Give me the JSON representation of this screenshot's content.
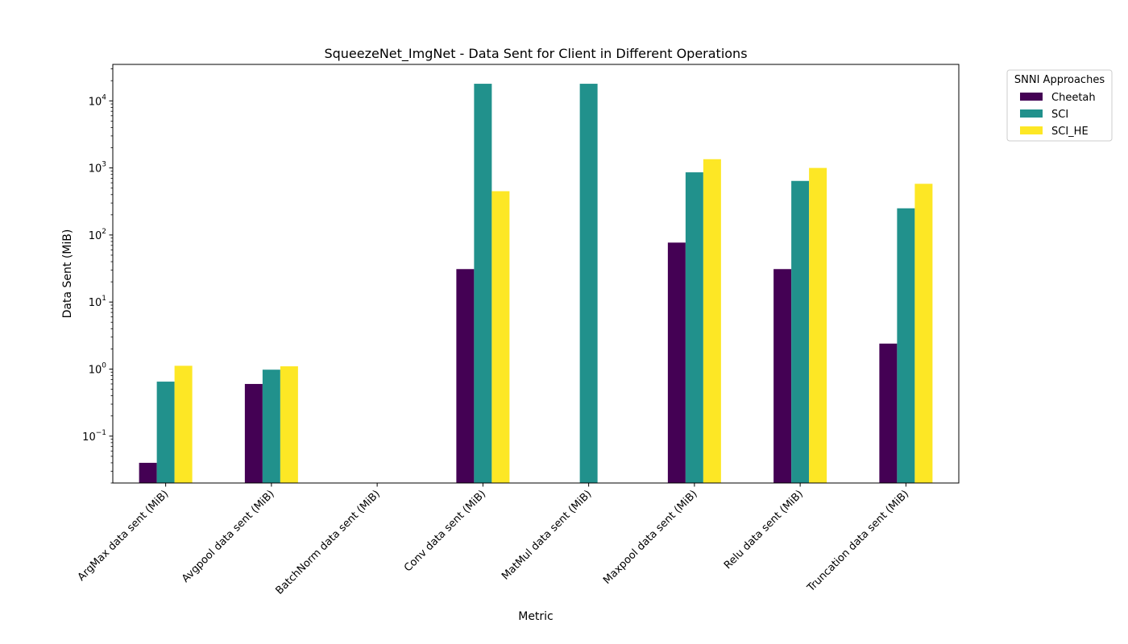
{
  "chart_data": {
    "type": "bar",
    "title": "SqueezeNet_ImgNet - Data Sent for Client in Different Operations",
    "xlabel": "Metric",
    "ylabel": "Data Sent (MiB)",
    "yscale": "log",
    "ylim": [
      0.02,
      35000
    ],
    "yticks": [
      {
        "value": 0.1,
        "base": "10",
        "exp": "−1"
      },
      {
        "value": 1,
        "base": "10",
        "exp": "0"
      },
      {
        "value": 10,
        "base": "10",
        "exp": "1"
      },
      {
        "value": 100,
        "base": "10",
        "exp": "2"
      },
      {
        "value": 1000,
        "base": "10",
        "exp": "3"
      },
      {
        "value": 10000,
        "base": "10",
        "exp": "4"
      }
    ],
    "categories": [
      "ArgMax data sent (MiB)",
      "Avgpool data sent (MiB)",
      "BatchNorm data sent (MiB)",
      "Conv data sent (MiB)",
      "MatMul data sent (MiB)",
      "Maxpool data sent (MiB)",
      "Relu data sent (MiB)",
      "Truncation data sent (MiB)"
    ],
    "series": [
      {
        "name": "Cheetah",
        "color": "#440154",
        "values": [
          0.04,
          0.6,
          null,
          31,
          null,
          77,
          31,
          2.4
        ]
      },
      {
        "name": "SCI",
        "color": "#21918c",
        "values": [
          0.65,
          0.98,
          null,
          18000,
          18000,
          860,
          640,
          250
        ]
      },
      {
        "name": "SCI_HE",
        "color": "#fde725",
        "values": [
          1.12,
          1.1,
          null,
          450,
          null,
          1350,
          1000,
          580
        ]
      }
    ],
    "legend": {
      "title": "SNNI Approaches",
      "placement": "outside-top-right"
    },
    "grid": false
  }
}
